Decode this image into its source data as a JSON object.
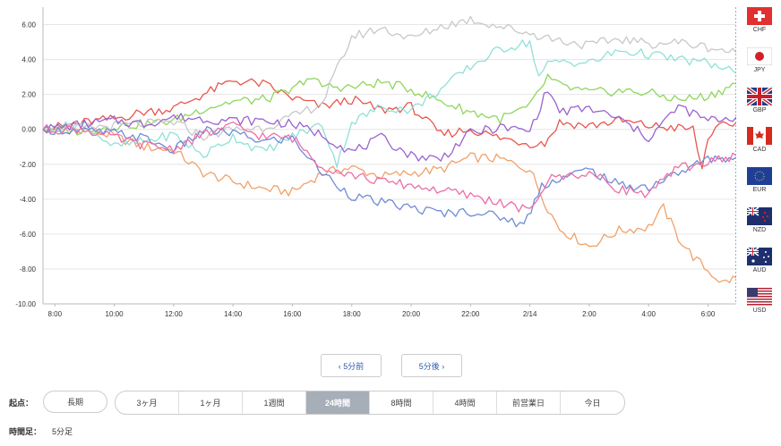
{
  "chart_data": {
    "type": "line",
    "x_ticks": [
      "8:00",
      "10:00",
      "12:00",
      "14:00",
      "16:00",
      "18:00",
      "20:00",
      "22:00",
      "2/14",
      "2:00",
      "4:00",
      "6:00"
    ],
    "y_ticks": [
      "6.00",
      "4.00",
      "2.00",
      "0.00",
      "-2.00",
      "-4.00",
      "-6.00",
      "-8.00",
      "-10.00"
    ],
    "ylim": [
      -10,
      7
    ],
    "x_range_hours": [
      7.6,
      30.95
    ],
    "grid": "horizontal",
    "legend_position": "bottom",
    "series": [
      {
        "name": "USD",
        "color": "#f0a16b",
        "points": [
          [
            7.6,
            0
          ],
          [
            9,
            0
          ],
          [
            10,
            -0.4
          ],
          [
            11,
            -1
          ],
          [
            12,
            -1.2
          ],
          [
            13,
            -2.5
          ],
          [
            14,
            -3
          ],
          [
            15,
            -3.4
          ],
          [
            16,
            -3.6
          ],
          [
            17,
            -2.5
          ],
          [
            18,
            -2.2
          ],
          [
            19,
            -2.7
          ],
          [
            20,
            -2.5
          ],
          [
            21,
            -2.3
          ],
          [
            22,
            -1.6
          ],
          [
            23,
            -1.7
          ],
          [
            24,
            -2.3
          ],
          [
            24.6,
            -4.5
          ],
          [
            25,
            -5.7
          ],
          [
            26,
            -6.7
          ],
          [
            27,
            -5.8
          ],
          [
            28,
            -5.6
          ],
          [
            28.5,
            -4.5
          ],
          [
            29,
            -6.2
          ],
          [
            29.5,
            -7.3
          ],
          [
            30,
            -8.1
          ],
          [
            30.5,
            -8.8
          ],
          [
            30.95,
            -8.5
          ]
        ]
      },
      {
        "name": "EUR",
        "color": "#e8564e",
        "points": [
          [
            7.6,
            0
          ],
          [
            9,
            0.4
          ],
          [
            10,
            0.6
          ],
          [
            11,
            1
          ],
          [
            12,
            1.2
          ],
          [
            13,
            2
          ],
          [
            14,
            2.8
          ],
          [
            15,
            2.6
          ],
          [
            16,
            1.8
          ],
          [
            17,
            1.3
          ],
          [
            18,
            1.7
          ],
          [
            19,
            1.1
          ],
          [
            20,
            1.3
          ],
          [
            21,
            -0.3
          ],
          [
            22,
            0
          ],
          [
            23,
            -0.5
          ],
          [
            24,
            -0.8
          ],
          [
            24.5,
            -0.8
          ],
          [
            25,
            0.4
          ],
          [
            26,
            0.2
          ],
          [
            27,
            0.5
          ],
          [
            28,
            0.2
          ],
          [
            29.5,
            0
          ],
          [
            29.8,
            -2.3
          ],
          [
            30,
            -0.4
          ],
          [
            30.5,
            0.2
          ],
          [
            30.95,
            0.4
          ]
        ]
      },
      {
        "name": "GBP",
        "color": "#8fd65c",
        "points": [
          [
            7.6,
            0
          ],
          [
            9,
            -0.1
          ],
          [
            10,
            0.2
          ],
          [
            11,
            0.3
          ],
          [
            12,
            0.5
          ],
          [
            13,
            1.2
          ],
          [
            14,
            1.6
          ],
          [
            15,
            1.7
          ],
          [
            16,
            2.2
          ],
          [
            16.5,
            3
          ],
          [
            17,
            2.5
          ],
          [
            18,
            2.4
          ],
          [
            19,
            2.7
          ],
          [
            20,
            2.3
          ],
          [
            21,
            1.6
          ],
          [
            22,
            1
          ],
          [
            23,
            0.6
          ],
          [
            24,
            1.3
          ],
          [
            24.6,
            3
          ],
          [
            25,
            2.5
          ],
          [
            26,
            2.1
          ],
          [
            27,
            2.2
          ],
          [
            28,
            2.1
          ],
          [
            29,
            1.7
          ],
          [
            30,
            1.9
          ],
          [
            30.95,
            2.6
          ]
        ]
      },
      {
        "name": "JPY",
        "color": "#8fe0d8",
        "points": [
          [
            7.6,
            0
          ],
          [
            9,
            0.3
          ],
          [
            10,
            -1
          ],
          [
            11,
            -0.7
          ],
          [
            12,
            -0.3
          ],
          [
            13,
            -1.5
          ],
          [
            14,
            -0.4
          ],
          [
            15,
            -1.3
          ],
          [
            16,
            -0.4
          ],
          [
            17,
            0.3
          ],
          [
            17.5,
            -2
          ],
          [
            18,
            0.4
          ],
          [
            19,
            1.3
          ],
          [
            20,
            1.1
          ],
          [
            21,
            2.3
          ],
          [
            22,
            3.6
          ],
          [
            23,
            4.6
          ],
          [
            24,
            5
          ],
          [
            24.3,
            3
          ],
          [
            24.6,
            3.7
          ],
          [
            25,
            3.9
          ],
          [
            26,
            3.8
          ],
          [
            27,
            4.5
          ],
          [
            28,
            4.3
          ],
          [
            29,
            4
          ],
          [
            30,
            3.8
          ],
          [
            30.95,
            3.2
          ]
        ]
      },
      {
        "name": "CHF",
        "color": "#c8c8c8",
        "points": [
          [
            7.6,
            0
          ],
          [
            9,
            0.1
          ],
          [
            10,
            0.2
          ],
          [
            11,
            0.3
          ],
          [
            12,
            0.4
          ],
          [
            13,
            -0.4
          ],
          [
            14,
            0
          ],
          [
            15,
            0.1
          ],
          [
            16,
            0.7
          ],
          [
            17,
            1.5
          ],
          [
            18,
            5.3
          ],
          [
            19,
            5.8
          ],
          [
            20,
            5.2
          ],
          [
            21,
            5.9
          ],
          [
            22,
            6.3
          ],
          [
            23,
            5.9
          ],
          [
            24,
            5.5
          ],
          [
            25,
            5.1
          ],
          [
            26,
            4.8
          ],
          [
            27,
            5.2
          ],
          [
            28,
            4.9
          ],
          [
            29,
            5
          ],
          [
            30,
            4.7
          ],
          [
            30.95,
            4.4
          ]
        ]
      },
      {
        "name": "AUD",
        "color": "#6f8bd6",
        "points": [
          [
            7.6,
            0
          ],
          [
            9,
            -0.1
          ],
          [
            10,
            -0.2
          ],
          [
            11,
            -0.5
          ],
          [
            12,
            -1.2
          ],
          [
            13,
            -0.1
          ],
          [
            14,
            -0.2
          ],
          [
            15,
            -0.7
          ],
          [
            16,
            -0.5
          ],
          [
            17,
            -2.5
          ],
          [
            18,
            -3.8
          ],
          [
            19,
            -4.2
          ],
          [
            20,
            -4.5
          ],
          [
            21,
            -4.8
          ],
          [
            22,
            -4.7
          ],
          [
            23,
            -5
          ],
          [
            23.8,
            -5.5
          ],
          [
            24.4,
            -3.2
          ],
          [
            25,
            -2.8
          ],
          [
            26,
            -2.3
          ],
          [
            27,
            -3.2
          ],
          [
            28,
            -3.3
          ],
          [
            29,
            -2.5
          ],
          [
            30,
            -1.7
          ],
          [
            30.95,
            -1.6
          ]
        ]
      },
      {
        "name": "CAD",
        "color": "#9a63cf",
        "points": [
          [
            7.6,
            0
          ],
          [
            9,
            0.3
          ],
          [
            10,
            0.5
          ],
          [
            11,
            0.3
          ],
          [
            12,
            0.7
          ],
          [
            13,
            0.6
          ],
          [
            14,
            0.5
          ],
          [
            15,
            0.5
          ],
          [
            16,
            0.3
          ],
          [
            17,
            -0.3
          ],
          [
            18,
            -1.3
          ],
          [
            19,
            -0.5
          ],
          [
            20,
            -1.5
          ],
          [
            21,
            -1.7
          ],
          [
            22,
            -0.2
          ],
          [
            23,
            0.1
          ],
          [
            24,
            -0.1
          ],
          [
            24.6,
            2.3
          ],
          [
            25,
            1
          ],
          [
            26,
            1.2
          ],
          [
            27,
            0.6
          ],
          [
            28,
            -0.5
          ],
          [
            29,
            1.3
          ],
          [
            30,
            0.5
          ],
          [
            30.95,
            0.7
          ]
        ]
      },
      {
        "name": "NZD",
        "color": "#ec6ea6",
        "points": [
          [
            7.6,
            0
          ],
          [
            9,
            0
          ],
          [
            10,
            -0.5
          ],
          [
            11,
            -0.9
          ],
          [
            12,
            -1.1
          ],
          [
            13,
            -0.3
          ],
          [
            14,
            0.2
          ],
          [
            15,
            -0.4
          ],
          [
            16,
            -0.5
          ],
          [
            17,
            -2.1
          ],
          [
            18,
            -2.6
          ],
          [
            19,
            -3
          ],
          [
            20,
            -3.2
          ],
          [
            21,
            -3.5
          ],
          [
            22,
            -3.8
          ],
          [
            23,
            -4.2
          ],
          [
            24,
            -4.7
          ],
          [
            24.6,
            -2.9
          ],
          [
            25,
            -2.7
          ],
          [
            26,
            -2.5
          ],
          [
            27,
            -3.4
          ],
          [
            28,
            -3.7
          ],
          [
            29,
            -2.2
          ],
          [
            30,
            -1.9
          ],
          [
            30.95,
            -1.5
          ]
        ]
      }
    ]
  },
  "legend": {
    "items": [
      "USD",
      "EUR",
      "GBP",
      "JPY",
      "CHF",
      "AUD",
      "CAD",
      "NZD"
    ]
  },
  "flags": {
    "items": [
      "CHF",
      "JPY",
      "GBP",
      "CAD",
      "EUR",
      "NZD",
      "AUD",
      "USD"
    ]
  },
  "nav": {
    "prev": "‹ 5分前",
    "next": "5分後 ›"
  },
  "start": {
    "label": "起点：",
    "long_term": "長期",
    "options": [
      "3ヶ月",
      "1ヶ月",
      "1週間",
      "24時間",
      "8時間",
      "4時間",
      "前営業日",
      "今日"
    ],
    "active": "24時間"
  },
  "timeframe": {
    "label": "時間足：",
    "value": "5分足"
  }
}
